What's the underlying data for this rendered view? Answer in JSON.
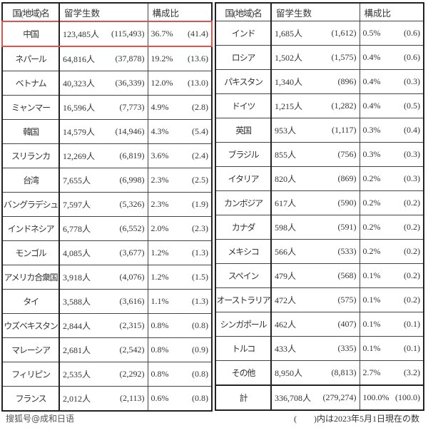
{
  "header": {
    "name": "国(地域)名",
    "count": "留学生数",
    "ratio": "構成比"
  },
  "highlight_color": "#d9534f",
  "watermark": "搜狐号@成和日语",
  "left_rows": [
    {
      "name": "中国",
      "count": "123,485人",
      "prev": "(115,493)",
      "ratio": "36.7%",
      "prev_ratio": "(41.4)"
    },
    {
      "name": "ネパール",
      "count": "64,816人",
      "prev": "(37,878)",
      "ratio": "19.2%",
      "prev_ratio": "(13.6)"
    },
    {
      "name": "ベトナム",
      "count": "40,323人",
      "prev": "(36,339)",
      "ratio": "12.0%",
      "prev_ratio": "(13.0)"
    },
    {
      "name": "ミャンマー",
      "count": "16,596人",
      "prev": "(7,773)",
      "ratio": "4.9%",
      "prev_ratio": "(2.8)"
    },
    {
      "name": "韓国",
      "count": "14,579人",
      "prev": "(14,946)",
      "ratio": "4.3%",
      "prev_ratio": "(5.4)"
    },
    {
      "name": "スリランカ",
      "count": "12,269人",
      "prev": "(6,819)",
      "ratio": "3.6%",
      "prev_ratio": "(2.4)"
    },
    {
      "name": "台湾",
      "count": "7,655人",
      "prev": "(6,998)",
      "ratio": "2.3%",
      "prev_ratio": "(2.5)"
    },
    {
      "name": "バングラデシュ",
      "count": "7,597人",
      "prev": "(5,326)",
      "ratio": "2.3%",
      "prev_ratio": "(1.9)"
    },
    {
      "name": "インドネシア",
      "count": "6,778人",
      "prev": "(6,552)",
      "ratio": "2.0%",
      "prev_ratio": "(2.3)"
    },
    {
      "name": "モンゴル",
      "count": "4,085人",
      "prev": "(3,677)",
      "ratio": "1.2%",
      "prev_ratio": "(1.3)"
    },
    {
      "name": "アメリカ合衆国",
      "count": "3,918人",
      "prev": "(4,076)",
      "ratio": "1.2%",
      "prev_ratio": "(1.5)"
    },
    {
      "name": "タイ",
      "count": "3,588人",
      "prev": "(3,616)",
      "ratio": "1.1%",
      "prev_ratio": "(1.3)"
    },
    {
      "name": "ウズベキスタン",
      "count": "2,844人",
      "prev": "(2,315)",
      "ratio": "0.8%",
      "prev_ratio": "(0.8)"
    },
    {
      "name": "マレーシア",
      "count": "2,681人",
      "prev": "(2,542)",
      "ratio": "0.8%",
      "prev_ratio": "(0.9)"
    },
    {
      "name": "フィリピン",
      "count": "2,535人",
      "prev": "(2,292)",
      "ratio": "0.8%",
      "prev_ratio": "(0.8)"
    },
    {
      "name": "フランス",
      "count": "2,012人",
      "prev": "(2,113)",
      "ratio": "0.6%",
      "prev_ratio": "(0.8)"
    }
  ],
  "right_rows": [
    {
      "name": "インド",
      "count": "1,685人",
      "prev": "(1,612)",
      "ratio": "0.5%",
      "prev_ratio": "(0.6)"
    },
    {
      "name": "ロシア",
      "count": "1,502人",
      "prev": "(1,575)",
      "ratio": "0.4%",
      "prev_ratio": "(0.6)"
    },
    {
      "name": "パキスタン",
      "count": "1,340人",
      "prev": "(896)",
      "ratio": "0.4%",
      "prev_ratio": "(0.3)"
    },
    {
      "name": "ドイツ",
      "count": "1,215人",
      "prev": "(1,282)",
      "ratio": "0.4%",
      "prev_ratio": "(0.5)"
    },
    {
      "name": "英国",
      "count": "953人",
      "prev": "(1,117)",
      "ratio": "0.3%",
      "prev_ratio": "(0.4)"
    },
    {
      "name": "ブラジル",
      "count": "855人",
      "prev": "(756)",
      "ratio": "0.3%",
      "prev_ratio": "(0.3)"
    },
    {
      "name": "イタリア",
      "count": "820人",
      "prev": "(869)",
      "ratio": "0.2%",
      "prev_ratio": "(0.3)"
    },
    {
      "name": "カンボジア",
      "count": "617人",
      "prev": "(590)",
      "ratio": "0.2%",
      "prev_ratio": "(0.2)"
    },
    {
      "name": "カナダ",
      "count": "598人",
      "prev": "(591)",
      "ratio": "0.2%",
      "prev_ratio": "(0.2)"
    },
    {
      "name": "メキシコ",
      "count": "566人",
      "prev": "(533)",
      "ratio": "0.2%",
      "prev_ratio": "(0.2)"
    },
    {
      "name": "スペイン",
      "count": "479人",
      "prev": "(568)",
      "ratio": "0.1%",
      "prev_ratio": "(0.2)"
    },
    {
      "name": "オーストラリア",
      "count": "472人",
      "prev": "(575)",
      "ratio": "0.1%",
      "prev_ratio": "(0.2)"
    },
    {
      "name": "シンガポール",
      "count": "462人",
      "prev": "(407)",
      "ratio": "0.1%",
      "prev_ratio": "(0.1)"
    },
    {
      "name": "トルコ",
      "count": "433人",
      "prev": "(335)",
      "ratio": "0.1%",
      "prev_ratio": "(0.1)"
    },
    {
      "name": "その他",
      "count": "8,950人",
      "prev": "(8,813)",
      "ratio": "2.7%",
      "prev_ratio": "(3.2)"
    },
    {
      "name": "計",
      "count": "336,708人",
      "prev": "(279,274)",
      "ratio": "100.0%",
      "prev_ratio": "(100.0)"
    }
  ],
  "footnote": "(　　)内は2023年5月1日現在の数"
}
